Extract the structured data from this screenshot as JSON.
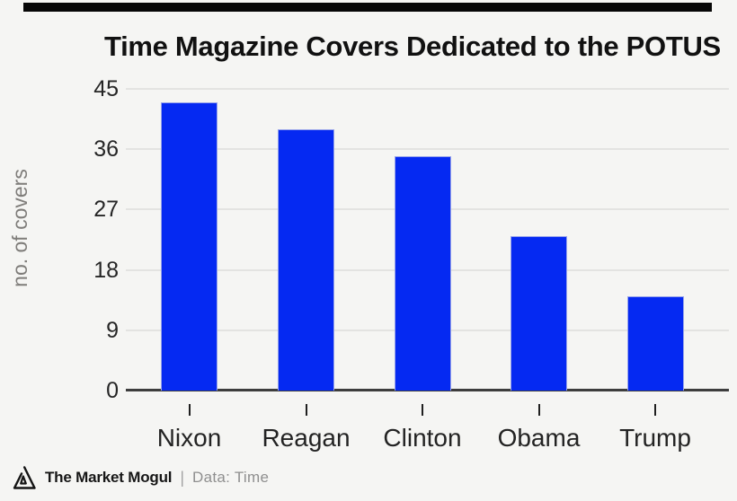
{
  "page": {
    "background_color": "#f5f5f3",
    "top_bar_color": "#070707"
  },
  "chart_data": {
    "type": "bar",
    "title": "Time Magazine Covers Dedicated to the POTUS",
    "categories": [
      "Nixon",
      "Reagan",
      "Clinton",
      "Obama",
      "Trump"
    ],
    "values": [
      43,
      39,
      35,
      23,
      14
    ],
    "xlabel": "",
    "ylabel": "no. of covers",
    "yticks": [
      0,
      9,
      18,
      27,
      36,
      45
    ],
    "ylim": [
      0,
      45
    ],
    "grid": "horizontal-light-gray",
    "legend_position": "none",
    "bar_color": "#0529f2",
    "bar_border_color": "#98a4ea",
    "axis_color": "#3d3d3d",
    "gridline_color": "#e3e3e1",
    "tick_label_color": "#262626",
    "ylabel_color": "#7f7d7a"
  },
  "footer": {
    "logo_icon": "mountain-triangle-logo",
    "brand": "The Market Mogul",
    "separator": "|",
    "source": "Data: Time"
  }
}
